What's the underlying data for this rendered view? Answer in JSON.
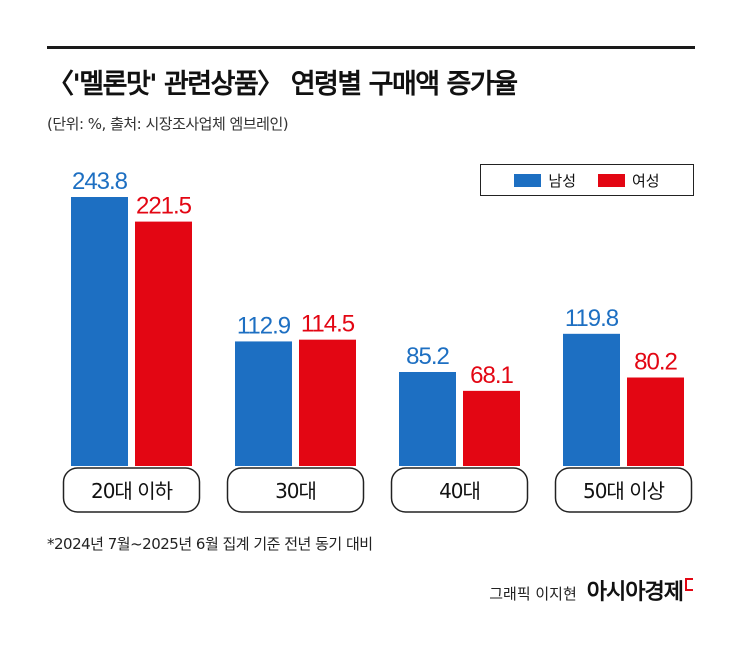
{
  "title": "〈'멜론맛' 관련상품〉 연령별 구매액 증가율",
  "subtitle": "(단위: %, 출처: 시장조사업체 엠브레인)",
  "legend": {
    "male": "남성",
    "female": "여성"
  },
  "colors": {
    "male": "#1d6fc2",
    "female": "#e30613",
    "axis_box_border": "#222222"
  },
  "chart_data": {
    "type": "bar",
    "title": "〈'멜론맛' 관련상품〉 연령별 구매액 증가율",
    "unit": "%",
    "categories": [
      "20대 이하",
      "30대",
      "40대",
      "50대 이상"
    ],
    "series": [
      {
        "name": "남성",
        "values": [
          243.8,
          112.9,
          85.2,
          119.8
        ]
      },
      {
        "name": "여성",
        "values": [
          221.5,
          114.5,
          68.1,
          80.2
        ]
      }
    ],
    "ylim": [
      0,
      270
    ],
    "grid": false,
    "legend_position": "top-right",
    "data_labels": true
  },
  "footnote": "*2024년 7월~2025년 6월 집계 기준 전년 동기 대비",
  "credit": {
    "text": "그래픽 이지현",
    "logo": "아시아경제"
  }
}
